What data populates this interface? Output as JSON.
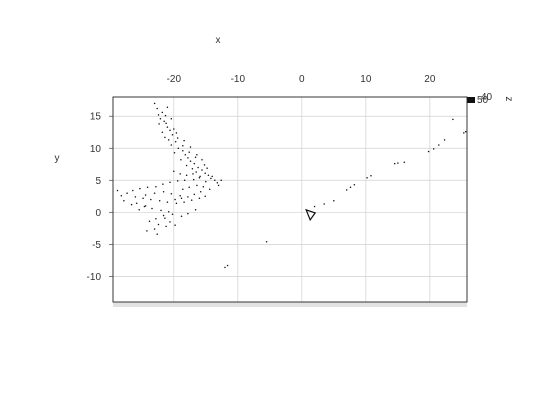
{
  "chart_data": {
    "type": "scatter",
    "title": "",
    "xlabel": "x",
    "ylabel": "y",
    "zlabel": "z",
    "xlim": [
      -29.5,
      25.8
    ],
    "ylim": [
      -14.0,
      18.0
    ],
    "x_ticks": [
      -20,
      -10,
      0,
      10,
      20
    ],
    "y_ticks": [
      15,
      10,
      5,
      0,
      -5,
      -10
    ],
    "z_tick_labels": [
      "40",
      "50"
    ],
    "x_axis_position": "top",
    "grid": true,
    "colors": {
      "points": "#111111",
      "grid": "#d0d0d0",
      "frame": "#222222",
      "marker": "#111111"
    },
    "marker": {
      "name": "triangle-marker",
      "x": 1.3,
      "y": -0.4
    },
    "points": [
      [
        -22.6,
        16.2
      ],
      [
        -21.8,
        15.6
      ],
      [
        -21.3,
        15.1
      ],
      [
        -22.1,
        14.6
      ],
      [
        -21.5,
        14.2
      ],
      [
        -22.3,
        13.8
      ],
      [
        -21.0,
        13.3
      ],
      [
        -20.6,
        12.8
      ],
      [
        -21.8,
        12.5
      ],
      [
        -20.2,
        12.1
      ],
      [
        -21.4,
        11.7
      ],
      [
        -20.8,
        11.3
      ],
      [
        -19.7,
        11.0
      ],
      [
        -20.4,
        10.5
      ],
      [
        -19.3,
        10.0
      ],
      [
        -18.6,
        9.6
      ],
      [
        -19.9,
        9.3
      ],
      [
        -18.2,
        9.0
      ],
      [
        -17.8,
        8.5
      ],
      [
        -18.9,
        8.2
      ],
      [
        -17.4,
        8.0
      ],
      [
        -16.8,
        7.6
      ],
      [
        -18.0,
        7.3
      ],
      [
        -16.2,
        7.0
      ],
      [
        -17.1,
        6.8
      ],
      [
        -15.6,
        6.6
      ],
      [
        -16.5,
        6.3
      ],
      [
        -15.1,
        6.1
      ],
      [
        -14.6,
        5.8
      ],
      [
        -15.9,
        5.6
      ],
      [
        -14.2,
        5.3
      ],
      [
        -13.6,
        5.0
      ],
      [
        -15.0,
        4.8
      ],
      [
        -13.2,
        4.6
      ],
      [
        -16.9,
        5.1
      ],
      [
        -18.3,
        5.0
      ],
      [
        -19.4,
        4.9
      ],
      [
        -20.6,
        4.7
      ],
      [
        -21.7,
        4.4
      ],
      [
        -22.8,
        4.0
      ],
      [
        -24.1,
        3.9
      ],
      [
        -25.3,
        3.7
      ],
      [
        -26.4,
        3.4
      ],
      [
        -27.3,
        3.0
      ],
      [
        -28.2,
        2.6
      ],
      [
        -26.0,
        2.4
      ],
      [
        -24.8,
        2.2
      ],
      [
        -23.6,
        2.0
      ],
      [
        -22.2,
        1.8
      ],
      [
        -21.0,
        1.6
      ],
      [
        -19.6,
        1.4
      ],
      [
        -18.4,
        1.6
      ],
      [
        -17.2,
        1.9
      ],
      [
        -16.0,
        2.2
      ],
      [
        -15.1,
        2.5
      ],
      [
        -19.0,
        2.6
      ],
      [
        -20.4,
        2.9
      ],
      [
        -21.6,
        3.2
      ],
      [
        -23.0,
        3.0
      ],
      [
        -24.4,
        2.7
      ],
      [
        -25.8,
        1.4
      ],
      [
        -24.6,
        0.9
      ],
      [
        -23.4,
        0.6
      ],
      [
        -22.0,
        0.3
      ],
      [
        -20.8,
        0.1
      ],
      [
        -21.6,
        -0.5
      ],
      [
        -22.8,
        -1.0
      ],
      [
        -23.8,
        -1.4
      ],
      [
        -22.4,
        -1.9
      ],
      [
        -21.2,
        -2.2
      ],
      [
        -23.0,
        -2.6
      ],
      [
        -24.2,
        -2.9
      ],
      [
        -22.6,
        -3.4
      ],
      [
        -21.4,
        -0.9
      ],
      [
        -20.6,
        -1.5
      ],
      [
        -19.8,
        -2.0
      ],
      [
        -18.8,
        -0.6
      ],
      [
        -17.8,
        -0.2
      ],
      [
        -16.6,
        0.4
      ],
      [
        -20.2,
        -0.3
      ],
      [
        -18.6,
        3.6
      ],
      [
        -17.6,
        3.9
      ],
      [
        -16.4,
        4.2
      ],
      [
        -15.4,
        4.0
      ],
      [
        -14.4,
        3.6
      ],
      [
        -20.0,
        6.4
      ],
      [
        -19.0,
        6.0
      ],
      [
        -18.0,
        5.8
      ],
      [
        -17.0,
        6.0
      ],
      [
        -16.0,
        5.4
      ],
      [
        -15.2,
        7.4
      ],
      [
        -14.8,
        6.9
      ],
      [
        -16.6,
        8.6
      ],
      [
        -17.6,
        9.4
      ],
      [
        -18.6,
        10.4
      ],
      [
        -19.4,
        11.6
      ],
      [
        -20.0,
        13.0
      ],
      [
        -21.2,
        13.9
      ],
      [
        -22.4,
        15.2
      ],
      [
        -23.0,
        17.0
      ],
      [
        -21.0,
        16.4
      ],
      [
        -20.4,
        14.6
      ],
      [
        -19.6,
        12.4
      ],
      [
        -18.4,
        11.2
      ],
      [
        -17.4,
        10.2
      ],
      [
        -16.4,
        9.0
      ],
      [
        -15.6,
        8.2
      ],
      [
        -14.0,
        5.6
      ],
      [
        -13.0,
        4.2
      ],
      [
        -12.6,
        5.0
      ],
      [
        -15.8,
        3.2
      ],
      [
        -16.8,
        2.8
      ],
      [
        -17.8,
        2.4
      ],
      [
        -18.8,
        2.2
      ],
      [
        -19.8,
        2.0
      ],
      [
        -24.4,
        1.0
      ],
      [
        -25.4,
        0.4
      ],
      [
        -26.6,
        1.2
      ],
      [
        -27.8,
        1.8
      ],
      [
        -28.8,
        3.4
      ],
      [
        -12.0,
        -8.6
      ],
      [
        -11.6,
        -8.3
      ],
      [
        -5.5,
        -4.6
      ],
      [
        2.0,
        0.9
      ],
      [
        3.5,
        1.3
      ],
      [
        5.0,
        1.8
      ],
      [
        7.0,
        3.5
      ],
      [
        7.6,
        3.9
      ],
      [
        8.2,
        4.3
      ],
      [
        10.2,
        5.4
      ],
      [
        10.8,
        5.7
      ],
      [
        14.5,
        7.6
      ],
      [
        15.0,
        7.7
      ],
      [
        16.0,
        7.8
      ],
      [
        19.8,
        9.5
      ],
      [
        20.6,
        9.9
      ],
      [
        21.4,
        10.5
      ],
      [
        22.3,
        11.3
      ],
      [
        23.6,
        14.5
      ],
      [
        25.3,
        12.4
      ],
      [
        25.6,
        12.6
      ]
    ]
  }
}
